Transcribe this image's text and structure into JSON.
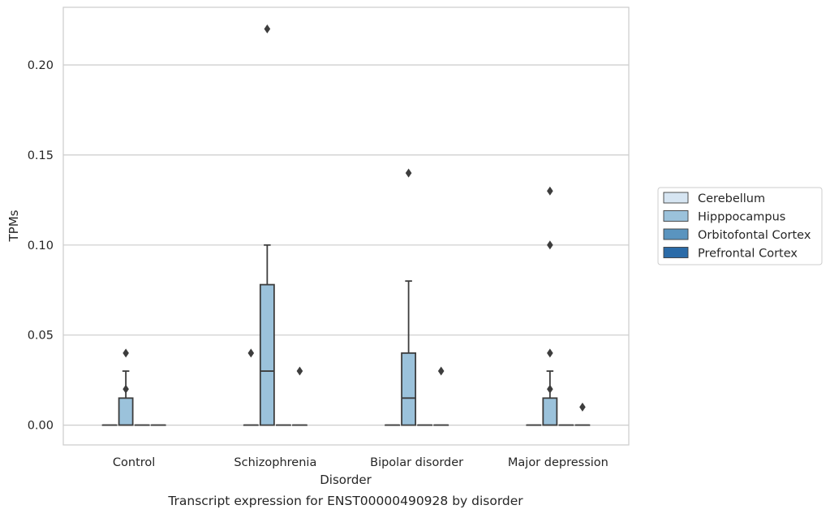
{
  "chart_data": {
    "type": "box",
    "title": "",
    "caption": "Transcript expression for ENST00000490928 by disorder",
    "xlabel": "Disorder",
    "ylabel": "TPMs",
    "ylim": [
      -0.011,
      0.232
    ],
    "yticks": [
      0.0,
      0.05,
      0.1,
      0.15,
      0.2
    ],
    "ytick_labels": [
      "0.00",
      "0.05",
      "0.10",
      "0.15",
      "0.20"
    ],
    "grid": "horizontal",
    "legend_position": "outside-right",
    "categories": [
      "Control",
      "Schizophrenia",
      "Bipolar disorder",
      "Major depression"
    ],
    "series": [
      {
        "name": "Cerebellum",
        "color": "#d6e5f2",
        "boxes": [
          {
            "q1": 0,
            "median": 0,
            "q3": 0,
            "whislo": 0,
            "whishi": 0,
            "fliers": []
          },
          {
            "q1": 0,
            "median": 0,
            "q3": 0,
            "whislo": 0,
            "whishi": 0,
            "fliers": []
          },
          {
            "q1": 0,
            "median": 0,
            "q3": 0,
            "whislo": 0,
            "whishi": 0,
            "fliers": []
          },
          {
            "q1": 0,
            "median": 0,
            "q3": 0,
            "whislo": 0,
            "whishi": 0,
            "fliers": []
          }
        ]
      },
      {
        "name": "Hipppocampus",
        "color": "#9bc2db",
        "boxes": [
          {
            "q1": 0,
            "median": 0,
            "q3": 0.015,
            "whislo": 0,
            "whishi": 0.03,
            "fliers": [
              0.02,
              0.04
            ]
          },
          {
            "q1": 0,
            "median": 0.03,
            "q3": 0.078,
            "whislo": 0,
            "whishi": 0.1,
            "fliers": [
              0.22
            ]
          },
          {
            "q1": 0,
            "median": 0.015,
            "q3": 0.04,
            "whislo": 0,
            "whishi": 0.08,
            "fliers": [
              0.14
            ]
          },
          {
            "q1": 0,
            "median": 0,
            "q3": 0.015,
            "whislo": 0,
            "whishi": 0.03,
            "fliers": [
              0.02,
              0.04,
              0.1,
              0.13
            ]
          }
        ]
      },
      {
        "name": "Orbitofontal Cortex",
        "color": "#5a94bf",
        "boxes": [
          {
            "q1": 0,
            "median": 0,
            "q3": 0,
            "whislo": 0,
            "whishi": 0,
            "fliers": []
          },
          {
            "q1": 0,
            "median": 0,
            "q3": 0,
            "whislo": 0,
            "whishi": 0,
            "fliers": []
          },
          {
            "q1": 0,
            "median": 0,
            "q3": 0,
            "whislo": 0,
            "whishi": 0,
            "fliers": []
          },
          {
            "q1": 0,
            "median": 0,
            "q3": 0,
            "whislo": 0,
            "whishi": 0,
            "fliers": []
          }
        ]
      },
      {
        "name": "Prefrontal Cortex",
        "color": "#2b6ba8",
        "boxes": [
          {
            "q1": 0,
            "median": 0,
            "q3": 0,
            "whislo": 0,
            "whishi": 0,
            "fliers": []
          },
          {
            "q1": 0,
            "median": 0,
            "q3": 0,
            "whislo": 0,
            "whishi": 0,
            "fliers": []
          },
          {
            "q1": 0,
            "median": 0,
            "q3": 0,
            "whislo": 0,
            "whishi": 0,
            "fliers": []
          },
          {
            "q1": 0,
            "median": 0,
            "q3": 0,
            "whislo": 0,
            "whishi": 0,
            "fliers": []
          }
        ]
      }
    ],
    "outliers_off_box": [
      {
        "category": "Schizophrenia",
        "side": "left",
        "values": [
          0.04
        ]
      },
      {
        "category": "Schizophrenia",
        "side": "right",
        "values": [
          0.03
        ]
      },
      {
        "category": "Bipolar disorder",
        "side": "right",
        "values": [
          0.03
        ]
      },
      {
        "category": "Major depression",
        "side": "right",
        "values": [
          0.01
        ]
      }
    ]
  }
}
